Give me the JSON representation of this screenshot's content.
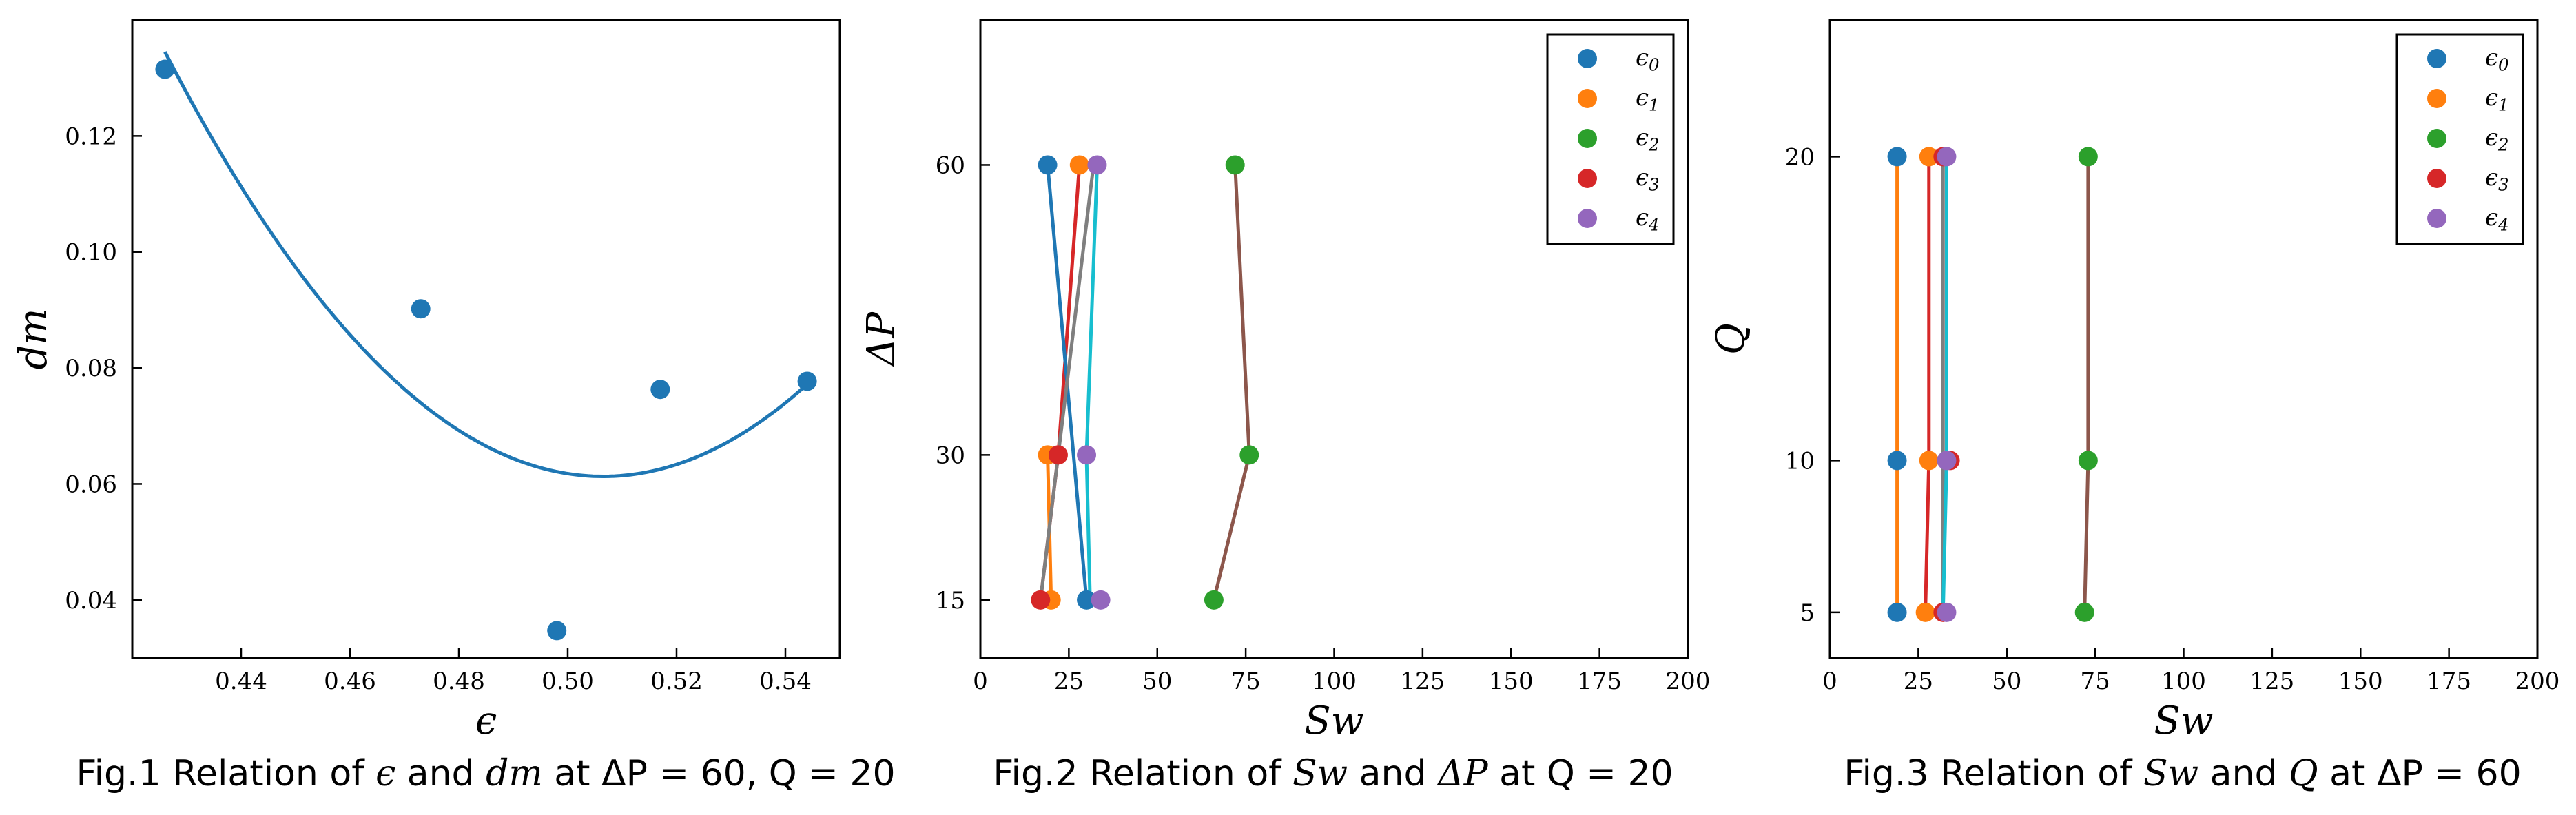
{
  "chart_data": [
    {
      "type": "scatter",
      "caption": {
        "prefix": "Fig.1 Relation of ",
        "v1": "ϵ",
        "mid": " and ",
        "v2": "dm",
        "tail": " at ΔP = 60, Q = 20"
      },
      "xlabel": "ϵ",
      "ylabel": "dm",
      "xlim": [
        0.42,
        0.55
      ],
      "ylim": [
        0.03,
        0.14
      ],
      "xticks": [
        "0.44",
        "0.46",
        "0.48",
        "0.50",
        "0.52",
        "0.54"
      ],
      "yticks": [
        "0.04",
        "0.06",
        "0.08",
        "0.10",
        "0.12"
      ],
      "points": [
        {
          "x": 0.426,
          "y": 0.1315
        },
        {
          "x": 0.473,
          "y": 0.0902
        },
        {
          "x": 0.498,
          "y": 0.0347
        },
        {
          "x": 0.517,
          "y": 0.0763
        },
        {
          "x": 0.544,
          "y": 0.0777
        }
      ],
      "fit_curve": {
        "x_from": 0.426,
        "x_to": 0.544,
        "vertex_x": 0.5065,
        "vertex_y": 0.0613,
        "start_y": 0.1345
      },
      "colors": {
        "points": "#1f77b4",
        "curve": "#1f77b4"
      },
      "grid": false
    },
    {
      "type": "line",
      "caption": {
        "prefix": "Fig.2 Relation of ",
        "v1": "Sw",
        "mid": " and ",
        "v2": "ΔP",
        "tail": " at Q = 20"
      },
      "xlabel": "Sw",
      "ylabel": "ΔP",
      "xlim": [
        0,
        200
      ],
      "ylim": [
        9,
        75
      ],
      "xticks": [
        "0",
        "25",
        "50",
        "75",
        "100",
        "125",
        "150",
        "175",
        "200"
      ],
      "yticks": [
        "15",
        "30",
        "60"
      ],
      "ytick_values": [
        15,
        30,
        60
      ],
      "legend": {
        "position": "upper right",
        "entries": [
          "ϵ0",
          "ϵ1",
          "ϵ2",
          "ϵ3",
          "ϵ4"
        ]
      },
      "series": [
        {
          "name": "ϵ0",
          "color": "#1f77b4",
          "points": [
            {
              "x": 19,
              "y": 60
            },
            {
              "x": 30,
              "y": 15
            }
          ]
        },
        {
          "name": "ϵ1",
          "color": "#ff7f0e",
          "points": [
            {
              "x": 28,
              "y": 60
            },
            {
              "x": 19,
              "y": 30
            },
            {
              "x": 20,
              "y": 15
            }
          ]
        },
        {
          "name": "ϵ2",
          "color": "#2ca02c",
          "points": [
            {
              "x": 72,
              "y": 60
            },
            {
              "x": 76,
              "y": 30
            },
            {
              "x": 66,
              "y": 15
            }
          ]
        },
        {
          "name": "ϵ3",
          "color": "#d62728",
          "points": [
            {
              "x": 22,
              "y": 30
            },
            {
              "x": 17,
              "y": 15
            }
          ]
        },
        {
          "name": "ϵ4",
          "color": "#9467bd",
          "points": [
            {
              "x": 33,
              "y": 60
            },
            {
              "x": 30,
              "y": 30
            },
            {
              "x": 34,
              "y": 15
            }
          ]
        }
      ],
      "connector_lines": [
        {
          "color": "#d62728",
          "x": [
            28,
            22,
            17
          ],
          "y": [
            60,
            30,
            15
          ]
        },
        {
          "color": "#1f77b4",
          "x": [
            19,
            30
          ],
          "y": [
            60,
            15
          ]
        },
        {
          "color": "#ff7f0e",
          "x": [
            19,
            20
          ],
          "y": [
            30,
            15
          ]
        },
        {
          "color": "#7f7f7f",
          "x": [
            32,
            17
          ],
          "y": [
            60,
            15
          ]
        },
        {
          "color": "#17becf",
          "x": [
            33,
            30,
            31
          ],
          "y": [
            60,
            30,
            15
          ]
        },
        {
          "color": "#8c564b",
          "x": [
            72,
            76,
            66
          ],
          "y": [
            60,
            30,
            15
          ]
        }
      ],
      "grid": false
    },
    {
      "type": "line",
      "caption": {
        "prefix": "Fig.3 Relation of ",
        "v1": "Sw",
        "mid": " and ",
        "v2": "Q",
        "tail": " at ΔP = 60"
      },
      "xlabel": "Sw",
      "ylabel": "Q",
      "xlim": [
        0,
        200
      ],
      "ylim": [
        3.5,
        24.5
      ],
      "xticks": [
        "0",
        "25",
        "50",
        "75",
        "100",
        "125",
        "150",
        "175",
        "200"
      ],
      "yticks": [
        "5",
        "10",
        "20"
      ],
      "ytick_values": [
        5,
        10,
        20
      ],
      "legend": {
        "position": "upper right",
        "entries": [
          "ϵ0",
          "ϵ1",
          "ϵ2",
          "ϵ3",
          "ϵ4"
        ]
      },
      "series": [
        {
          "name": "ϵ0",
          "color": "#1f77b4",
          "points": [
            {
              "x": 19,
              "y": 20
            },
            {
              "x": 19,
              "y": 10
            },
            {
              "x": 19,
              "y": 5
            }
          ]
        },
        {
          "name": "ϵ1",
          "color": "#ff7f0e",
          "points": [
            {
              "x": 28,
              "y": 20
            },
            {
              "x": 28,
              "y": 10
            },
            {
              "x": 27,
              "y": 5
            }
          ]
        },
        {
          "name": "ϵ2",
          "color": "#2ca02c",
          "points": [
            {
              "x": 73,
              "y": 20
            },
            {
              "x": 73,
              "y": 10
            },
            {
              "x": 72,
              "y": 5
            }
          ]
        },
        {
          "name": "ϵ3",
          "color": "#d62728",
          "points": [
            {
              "x": 32,
              "y": 20
            },
            {
              "x": 34,
              "y": 10
            },
            {
              "x": 32,
              "y": 5
            }
          ]
        },
        {
          "name": "ϵ4",
          "color": "#9467bd",
          "points": [
            {
              "x": 33,
              "y": 20
            },
            {
              "x": 33,
              "y": 10
            },
            {
              "x": 33,
              "y": 5
            }
          ]
        }
      ],
      "connector_lines": [
        {
          "color": "#ff7f0e",
          "x": [
            19,
            19,
            19
          ],
          "y": [
            20,
            10,
            5
          ]
        },
        {
          "color": "#d62728",
          "x": [
            28,
            28,
            27
          ],
          "y": [
            20,
            10,
            5
          ]
        },
        {
          "color": "#7f7f7f",
          "x": [
            32,
            32,
            32
          ],
          "y": [
            20,
            10,
            5
          ]
        },
        {
          "color": "#17becf",
          "x": [
            33,
            33,
            32
          ],
          "y": [
            20,
            10,
            5
          ]
        },
        {
          "color": "#8c564b",
          "x": [
            73,
            73,
            72
          ],
          "y": [
            20,
            10,
            5
          ]
        }
      ],
      "grid": false
    }
  ]
}
